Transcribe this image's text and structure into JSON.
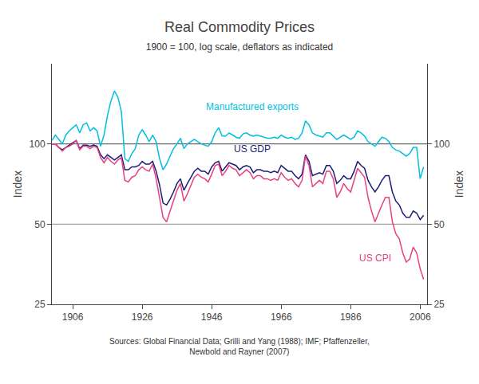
{
  "chart_data": {
    "type": "line",
    "title": "Real Commodity Prices",
    "subtitle": "1900 = 100, log scale, deflators as indicated",
    "ylabel": "Index",
    "y2label": "Index",
    "source": "Sources: Global Financial Data; Grilli and Yang (1988); IMF; Pfaffenzeller,\nNewbold and Rayner (2007)",
    "log": "y",
    "grid": false,
    "xlim": [
      1900,
      2008
    ],
    "xticks": [
      1906,
      1926,
      1946,
      1966,
      1986,
      2006
    ],
    "ylim": [
      25,
      200
    ],
    "yticks": [
      25,
      50,
      100
    ],
    "y2lim": [
      25,
      200
    ],
    "y2ticks": [
      25,
      50,
      100
    ],
    "hlines": [
      {
        "value": 100,
        "color": "#444444"
      },
      {
        "value": 50,
        "color": "#888888"
      }
    ],
    "x": [
      1900,
      1901,
      1902,
      1903,
      1904,
      1905,
      1906,
      1907,
      1908,
      1909,
      1910,
      1911,
      1912,
      1913,
      1914,
      1915,
      1916,
      1917,
      1918,
      1919,
      1920,
      1921,
      1922,
      1923,
      1924,
      1925,
      1926,
      1927,
      1928,
      1929,
      1930,
      1931,
      1932,
      1933,
      1934,
      1935,
      1936,
      1937,
      1938,
      1939,
      1940,
      1941,
      1942,
      1943,
      1944,
      1945,
      1946,
      1947,
      1948,
      1949,
      1950,
      1951,
      1952,
      1953,
      1954,
      1955,
      1956,
      1957,
      1958,
      1959,
      1960,
      1961,
      1962,
      1963,
      1964,
      1965,
      1966,
      1967,
      1968,
      1969,
      1970,
      1971,
      1972,
      1973,
      1974,
      1975,
      1976,
      1977,
      1978,
      1979,
      1980,
      1981,
      1982,
      1983,
      1984,
      1985,
      1986,
      1987,
      1988,
      1989,
      1990,
      1991,
      1992,
      1993,
      1994,
      1995,
      1996,
      1997,
      1998,
      1999,
      2000,
      2001,
      2002,
      2003,
      2004,
      2005,
      2006,
      2007
    ],
    "series": [
      {
        "name": "Manufactured exports",
        "color": "#00BFDF",
        "values": [
          103,
          108,
          104,
          100,
          108,
          112,
          115,
          118,
          110,
          118,
          120,
          112,
          115,
          112,
          98,
          108,
          128,
          145,
          158,
          150,
          132,
          88,
          86,
          92,
          96,
          108,
          113,
          108,
          102,
          108,
          102,
          88,
          80,
          84,
          90,
          96,
          100,
          105,
          96,
          100,
          102,
          104,
          102,
          100,
          99,
          98,
          102,
          110,
          115,
          107,
          107,
          110,
          108,
          106,
          105,
          109,
          110,
          108,
          107,
          108,
          107,
          106,
          105,
          105,
          106,
          105,
          108,
          106,
          105,
          106,
          104,
          105,
          110,
          122,
          118,
          110,
          108,
          107,
          106,
          110,
          110,
          107,
          104,
          106,
          108,
          106,
          104,
          106,
          112,
          110,
          107,
          102,
          100,
          98,
          102,
          106,
          105,
          102,
          97,
          95,
          94,
          92,
          90,
          92,
          97,
          97,
          74,
          82
        ]
      },
      {
        "name": "US GDP",
        "color": "#1C1C78",
        "values": [
          100,
          100,
          97,
          95,
          97,
          99,
          101,
          103,
          96,
          99,
          99,
          98,
          99,
          98,
          91,
          88,
          91,
          89,
          87,
          89,
          91,
          80,
          80,
          82,
          82,
          83,
          86,
          84,
          84,
          86,
          79,
          70,
          60,
          59,
          62,
          66,
          71,
          74,
          67,
          71,
          75,
          79,
          81,
          79,
          79,
          77,
          82,
          85,
          86,
          79,
          82,
          85,
          84,
          83,
          80,
          82,
          83,
          82,
          78,
          80,
          80,
          79,
          79,
          78,
          79,
          78,
          83,
          81,
          79,
          79,
          76,
          74,
          77,
          91,
          86,
          76,
          77,
          78,
          77,
          83,
          83,
          79,
          71,
          73,
          76,
          74,
          74,
          79,
          86,
          83,
          81,
          73,
          69,
          66,
          69,
          73,
          76,
          76,
          66,
          61,
          59,
          55,
          53,
          53,
          56,
          55,
          52,
          54
        ]
      },
      {
        "name": "US CPI",
        "color": "#E84080",
        "values": [
          100,
          100,
          97,
          94,
          97,
          98,
          100,
          103,
          95,
          98,
          98,
          96,
          98,
          97,
          89,
          85,
          89,
          86,
          84,
          87,
          89,
          73,
          72,
          75,
          76,
          80,
          82,
          80,
          79,
          84,
          74,
          63,
          53,
          51,
          56,
          61,
          67,
          71,
          61,
          65,
          70,
          75,
          77,
          75,
          74,
          72,
          77,
          83,
          84,
          76,
          79,
          83,
          81,
          80,
          76,
          78,
          80,
          78,
          74,
          76,
          76,
          74,
          74,
          73,
          74,
          73,
          78,
          75,
          73,
          74,
          71,
          69,
          73,
          90,
          83,
          69,
          71,
          73,
          71,
          79,
          79,
          74,
          63,
          66,
          71,
          68,
          66,
          73,
          81,
          78,
          75,
          63,
          56,
          51,
          55,
          59,
          63,
          63,
          51,
          46,
          44,
          39,
          36,
          37,
          41,
          39,
          34,
          31
        ]
      }
    ],
    "annotations": [
      {
        "text": "Manufactured exports",
        "x": 1944,
        "y": 130,
        "color": "#00BFDF"
      },
      {
        "text": "US GDP",
        "x": 1952,
        "y": 90,
        "color": "#1C1C78"
      },
      {
        "text": "US CPI",
        "x": 1988,
        "y": 35,
        "color": "#E84080"
      }
    ]
  }
}
